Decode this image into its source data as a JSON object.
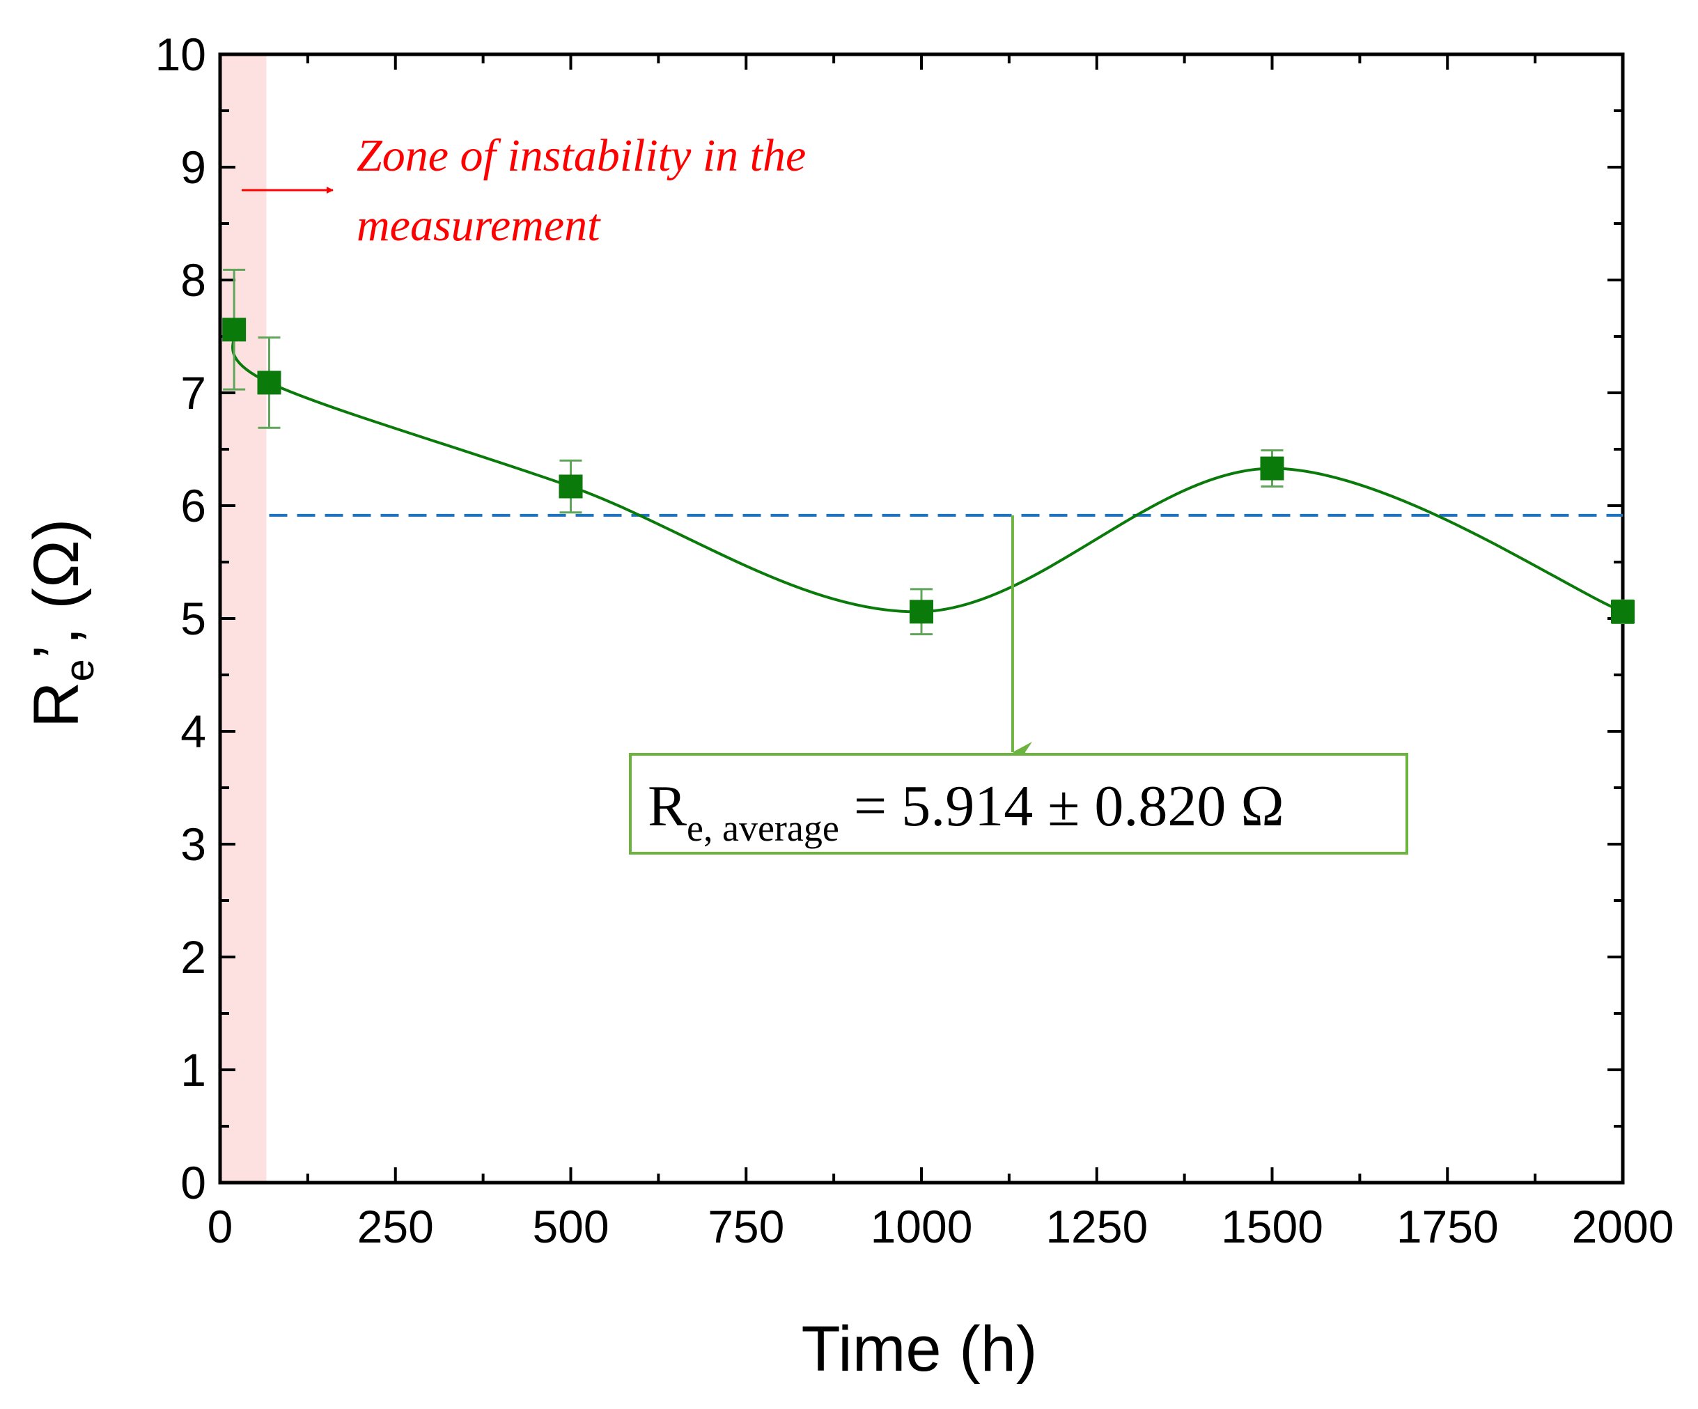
{
  "chart_data": {
    "type": "scatter",
    "title": "",
    "xlabel": "Time (h)",
    "ylabel": {
      "main": "R",
      "sub": "e",
      "suffix": "’, (Ω)"
    },
    "xlim": [
      0,
      2000
    ],
    "ylim": [
      0,
      10
    ],
    "x_major_ticks": [
      0,
      250,
      500,
      750,
      1000,
      1250,
      1500,
      1750,
      2000
    ],
    "x_tick_labels": [
      "0",
      "250",
      "500",
      "750",
      "1000",
      "1250",
      "1500",
      "1750",
      "2000"
    ],
    "y_major_ticks": [
      0,
      1,
      2,
      3,
      4,
      5,
      6,
      7,
      8,
      9,
      10
    ],
    "y_tick_labels": [
      "0",
      "1",
      "2",
      "3",
      "4",
      "5",
      "6",
      "7",
      "8",
      "9",
      "10"
    ],
    "grid": false,
    "series": [
      {
        "name": "Re",
        "color": "#0a7a0a",
        "marker": "square",
        "line": "smooth spline",
        "x": [
          20,
          70,
          500,
          1000,
          1500,
          2000
        ],
        "y": [
          7.56,
          7.09,
          6.17,
          5.06,
          6.33,
          5.06
        ],
        "error": [
          0.53,
          0.4,
          0.23,
          0.2,
          0.16,
          0.1
        ]
      }
    ],
    "reference_line": {
      "value": 5.914,
      "x_start": 70,
      "x_end": 2000,
      "style": "dashed",
      "color": "#1e73be"
    },
    "shaded_region": {
      "x_start": 0,
      "x_end": 66,
      "color": "#fde0e0"
    },
    "annotations": {
      "zone_label_line1": "Zone of instability in the",
      "zone_label_line2": "measurement",
      "zone_color": "#ff0000",
      "average_box": {
        "prefix": "R",
        "subscript": "e, average",
        "value_text": " = 5.914 ± 0.820 Ω",
        "arrow_x": 1130,
        "color": "#6db33f"
      }
    }
  }
}
